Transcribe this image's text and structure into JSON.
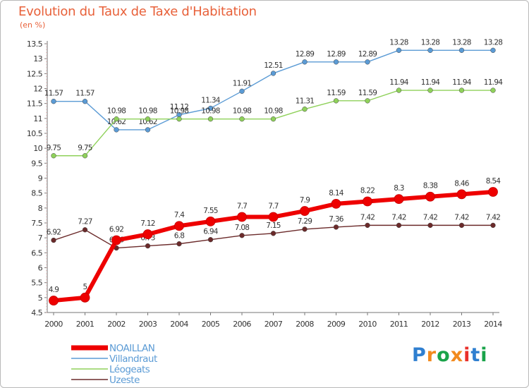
{
  "header": {
    "title": "Evolution du Taux de Taxe d'Habitation",
    "unit": "(en %)"
  },
  "brand": {
    "text": "Proxiti",
    "colors": [
      "#2f7fd0",
      "#f28a1e",
      "#1aa34a",
      "#f28a1e",
      "#e9302b",
      "#2f7fd0",
      "#1aa34a"
    ]
  },
  "chart_data": {
    "type": "line",
    "x": [
      "2000",
      "2001",
      "2002",
      "2003",
      "2004",
      "2005",
      "2006",
      "2007",
      "2008",
      "2009",
      "2010",
      "2011",
      "2012",
      "2013",
      "2014"
    ],
    "ylim": [
      4.5,
      13.5
    ],
    "yticks": [
      "4.5",
      "5",
      "5.5",
      "6",
      "6.5",
      "7",
      "7.5",
      "8",
      "8.5",
      "9",
      "9.5",
      "10",
      "10.5",
      "11",
      "11.5",
      "12",
      "12.5",
      "13",
      "13.5"
    ],
    "grid": false,
    "legend": "bottom-left",
    "series": [
      {
        "name": "NOAILLAN",
        "color": "#ee0000",
        "emphasis": true,
        "values": [
          4.9,
          5.0,
          6.92,
          7.12,
          7.4,
          7.55,
          7.7,
          7.7,
          7.9,
          8.14,
          8.22,
          8.3,
          8.38,
          8.46,
          8.54
        ],
        "labels": [
          "4.9",
          "5",
          "6.92",
          "7.12",
          "7.4",
          "7.55",
          "7.7",
          "7.7",
          "7.9",
          "8.14",
          "8.22",
          "8.3",
          "8.38",
          "8.46",
          "8.54"
        ]
      },
      {
        "name": "Villandraut",
        "color": "#5b9bd5",
        "emphasis": false,
        "values": [
          11.57,
          11.57,
          10.62,
          10.62,
          11.12,
          11.34,
          11.91,
          12.51,
          12.89,
          12.89,
          12.89,
          13.28,
          13.28,
          13.28,
          13.28
        ],
        "labels": [
          "11.57",
          "11.57",
          "10.62",
          "10.62",
          "11.12",
          "11.34",
          "11.91",
          "12.51",
          "12.89",
          "12.89",
          "12.89",
          "13.28",
          "13.28",
          "13.28",
          "13.28"
        ]
      },
      {
        "name": "Léogeats",
        "color": "#8fd15a",
        "emphasis": false,
        "values": [
          9.75,
          9.75,
          10.98,
          10.98,
          10.98,
          10.98,
          10.98,
          10.98,
          11.31,
          11.59,
          11.59,
          11.94,
          11.94,
          11.94,
          11.94
        ],
        "labels": [
          "9.75",
          "9.75",
          "10.98",
          "10.98",
          "10.98",
          "10.98",
          "10.98",
          "10.98",
          "11.31",
          "11.59",
          "11.59",
          "11.94",
          "11.94",
          "11.94",
          "11.94"
        ]
      },
      {
        "name": "Uzeste",
        "color": "#6b2a2a",
        "emphasis": false,
        "values": [
          6.92,
          7.27,
          6.66,
          6.73,
          6.8,
          6.94,
          7.08,
          7.15,
          7.29,
          7.36,
          7.42,
          7.42,
          7.42,
          7.42,
          7.42
        ],
        "labels": [
          "6.92",
          "7.27",
          "6.66",
          "6.73",
          "6.8",
          "6.94",
          "7.08",
          "7.15",
          "7.29",
          "7.36",
          "7.42",
          "7.42",
          "7.42",
          "7.42",
          "7.42"
        ]
      }
    ]
  }
}
